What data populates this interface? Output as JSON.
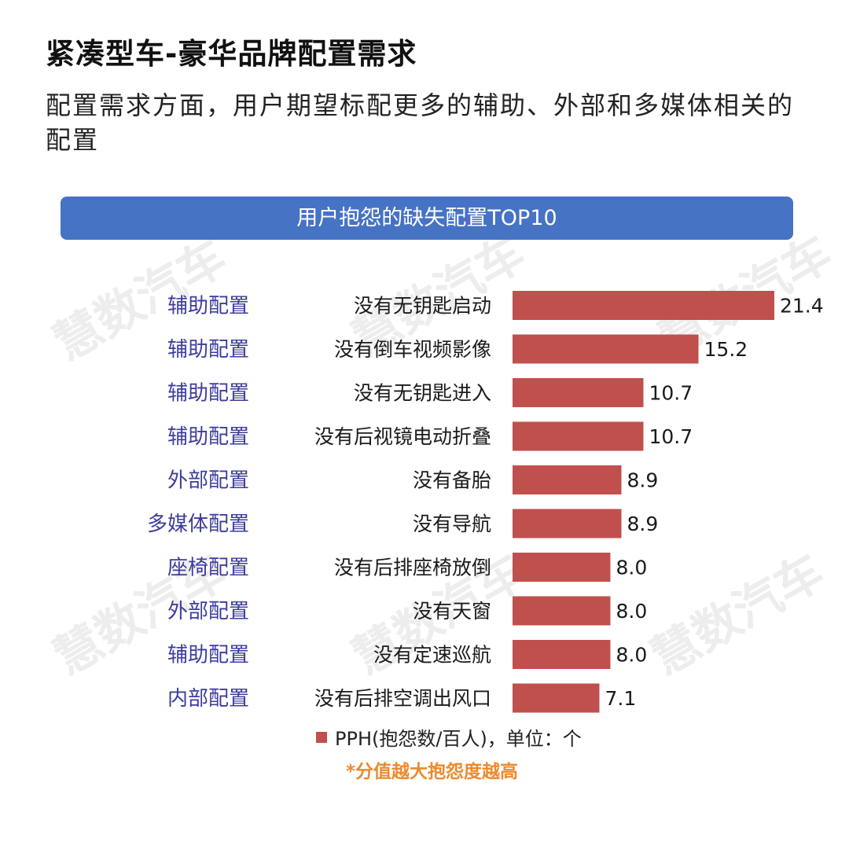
{
  "header": {
    "title": "紧凑型车-豪华品牌配置需求",
    "subtitle": "配置需求方面，用户期望标配更多的辅助、外部和多媒体相关的配置"
  },
  "banner": {
    "text": "用户抱怨的缺失配置TOP10"
  },
  "watermark": {
    "text": "慧数汽车"
  },
  "legend": {
    "label": "PPH(抱怨数/百人)，单位：个",
    "color": "#c0504d"
  },
  "note": {
    "text": "*分值越大抱怨度越高"
  },
  "chart_data": {
    "type": "bar",
    "orientation": "horizontal",
    "title": "用户抱怨的缺失配置TOP10",
    "categories": [
      "没有无钥匙启动",
      "没有倒车视频影像",
      "没有无钥匙进入",
      "没有后视镜电动折叠",
      "没有备胎",
      "没有导航",
      "没有后排座椅放倒",
      "没有天窗",
      "没有定速巡航",
      "没有后排空调出风口"
    ],
    "groups": [
      "辅助配置",
      "辅助配置",
      "辅助配置",
      "辅助配置",
      "外部配置",
      "多媒体配置",
      "座椅配置",
      "外部配置",
      "辅助配置",
      "内部配置"
    ],
    "series": [
      {
        "name": "PPH(抱怨数/百人)，单位：个",
        "values": [
          21.4,
          15.2,
          10.7,
          10.7,
          8.9,
          8.9,
          8.0,
          8.0,
          8.0,
          7.1
        ]
      }
    ],
    "value_labels": [
      "21.4",
      "15.2",
      "10.7",
      "10.7",
      "8.9",
      "8.9",
      "8.0",
      "8.0",
      "8.0",
      "7.1"
    ],
    "xlim": [
      0,
      21.4
    ],
    "grid": false,
    "legend_position": "bottom",
    "bar_color": "#c0504d",
    "group_label_color": "#3d3d9e"
  }
}
